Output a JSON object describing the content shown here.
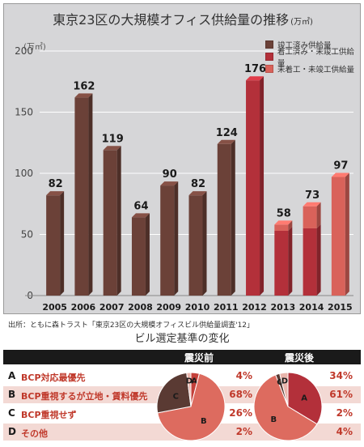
{
  "chart_title": "東京23区の大規模オフィス供給量の推移",
  "chart_unit": "(万㎡)",
  "y_axis_unit": "(万㎡)",
  "chart_data": {
    "type": "bar",
    "title": "東京23区の大規模オフィス供給量の推移",
    "xlabel": "",
    "ylabel": "(万㎡)",
    "ylim": [
      0,
      200
    ],
    "yticks": [
      0,
      50,
      100,
      150,
      200
    ],
    "categories": [
      "2005",
      "2006",
      "2007",
      "2008",
      "2009",
      "2010",
      "2011",
      "2012",
      "2013",
      "2014",
      "2015"
    ],
    "series": [
      {
        "name": "竣工済み供給量",
        "color": "#6b4138",
        "values": [
          82,
          162,
          119,
          64,
          90,
          82,
          124,
          null,
          null,
          null,
          null
        ]
      },
      {
        "name": "着工済み・未竣工供給量",
        "color": "#b3303a",
        "values": [
          null,
          null,
          null,
          null,
          null,
          null,
          null,
          176,
          53,
          55,
          null
        ]
      },
      {
        "name": "未着工・未竣工供給量",
        "color": "#d9625a",
        "values": [
          null,
          null,
          null,
          null,
          null,
          null,
          null,
          null,
          5,
          18,
          97
        ]
      }
    ],
    "totals": [
      82,
      162,
      119,
      64,
      90,
      82,
      124,
      176,
      58,
      73,
      97
    ],
    "legend_position": "top-right",
    "grid": true
  },
  "source_note": "出所：ともに森トラスト「東京23区の大規模オフィスビル供給量調査'12」",
  "table": {
    "title": "ビル選定基準の変化",
    "header_before": "震災前",
    "header_after": "震災後",
    "rows": [
      {
        "letter": "A",
        "label": "BCP対応最優先",
        "before": "4%",
        "after": "34%"
      },
      {
        "letter": "B",
        "label": "BCP重視するが立地・賃料優先",
        "before": "68%",
        "after": "61%"
      },
      {
        "letter": "C",
        "label": "BCP重視せず",
        "before": "26%",
        "after": "2%"
      },
      {
        "letter": "D",
        "label": "その他",
        "before": "2%",
        "after": "4%"
      }
    ],
    "pie_before": [
      {
        "label": "A",
        "value": 4,
        "color": "#c4403a"
      },
      {
        "label": "B",
        "value": 68,
        "color": "#dd6b5f"
      },
      {
        "label": "C",
        "value": 26,
        "color": "#5a3a33"
      },
      {
        "label": "D",
        "value": 2,
        "color": "#e9b5ac"
      }
    ],
    "pie_after": [
      {
        "label": "A",
        "value": 34,
        "color": "#b3303a"
      },
      {
        "label": "B",
        "value": 61,
        "color": "#dd6b5f"
      },
      {
        "label": "C",
        "value": 2,
        "color": "#5a3a33"
      },
      {
        "label": "D",
        "value": 4,
        "color": "#e9b5ac"
      }
    ]
  }
}
